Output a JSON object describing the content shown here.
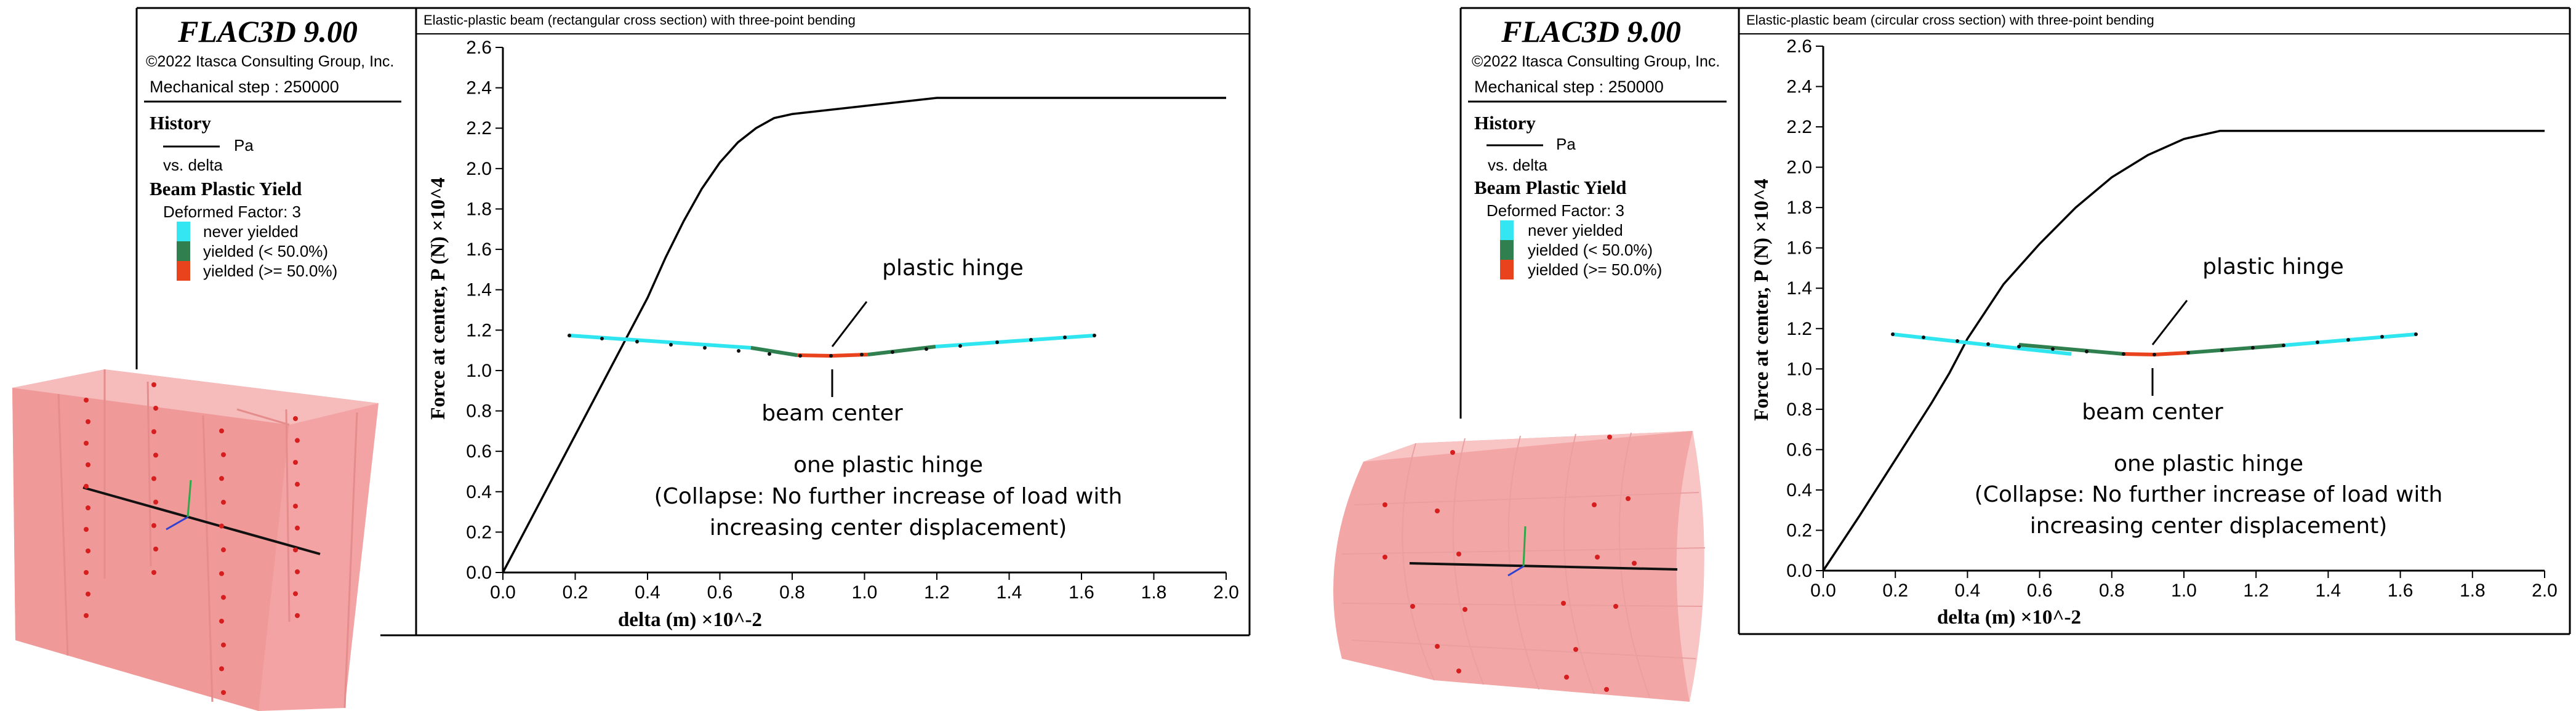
{
  "panels": [
    {
      "id": "rect",
      "legend": {
        "app_title": "FLAC3D 9.00",
        "copyright": "©2022 Itasca Consulting Group, Inc.",
        "step": "Mechanical step : 250000",
        "history_heading": "History",
        "history_series": "Pa",
        "history_vs": "vs. delta",
        "yield_heading": "Beam Plastic Yield",
        "deformed": "Deformed Factor: 3",
        "yield_items": [
          {
            "label": "never yielded",
            "color": "#33e6f2"
          },
          {
            "label": "yielded (< 50.0%)",
            "color": "#2f7f4f"
          },
          {
            "label": "yielded (>= 50.0%)",
            "color": "#e8431c"
          }
        ]
      },
      "annotations": {
        "hinge": "plastic hinge",
        "center": "beam center",
        "note_line1": "one plastic hinge",
        "note_line2": "(Collapse: No further increase of load with",
        "note_line3": "increasing center displacement)"
      }
    },
    {
      "id": "circ",
      "legend": {
        "app_title": "FLAC3D 9.00",
        "copyright": "©2022 Itasca Consulting Group, Inc.",
        "step": "Mechanical step : 250000",
        "history_heading": "History",
        "history_series": "Pa",
        "history_vs": "vs. delta",
        "yield_heading": "Beam Plastic Yield",
        "deformed": "Deformed Factor: 3",
        "yield_items": [
          {
            "label": "never yielded",
            "color": "#33e6f2"
          },
          {
            "label": "yielded (< 50.0%)",
            "color": "#2f7f4f"
          },
          {
            "label": "yielded (>= 50.0%)",
            "color": "#e8431c"
          }
        ]
      },
      "annotations": {
        "hinge": "plastic hinge",
        "center": "beam center",
        "note_line1": "one plastic hinge",
        "note_line2": "(Collapse: No further increase of load with",
        "note_line3": "increasing center displacement)"
      }
    }
  ],
  "chart_data": [
    {
      "type": "line",
      "title": "Elastic-plastic beam (rectangular cross section) with three-point bending",
      "xlabel": "delta (m) ×10^-2",
      "ylabel": "Force at center, P (N) ×10^4",
      "xlim": [
        0,
        2.0
      ],
      "ylim": [
        0,
        2.6
      ],
      "xticks": [
        "0.0",
        "0.2",
        "0.4",
        "0.6",
        "0.8",
        "1.0",
        "1.2",
        "1.4",
        "1.6",
        "1.8",
        "2.0"
      ],
      "yticks": [
        "0.0",
        "0.2",
        "0.4",
        "0.6",
        "0.8",
        "1.0",
        "1.2",
        "1.4",
        "1.6",
        "1.8",
        "2.0",
        "2.2",
        "2.4",
        "2.6"
      ],
      "grid": false,
      "series": [
        {
          "x": [
            0.0,
            0.1,
            0.2,
            0.3,
            0.4,
            0.45,
            0.5,
            0.55,
            0.6,
            0.65,
            0.7,
            0.75,
            0.8,
            1.0,
            1.2,
            1.4,
            1.6,
            1.8,
            2.0
          ],
          "y": [
            0.0,
            0.34,
            0.68,
            1.02,
            1.36,
            1.56,
            1.74,
            1.9,
            2.03,
            2.13,
            2.2,
            2.25,
            2.27,
            2.31,
            2.35,
            2.35,
            2.35,
            2.35,
            2.35
          ]
        }
      ]
    },
    {
      "type": "line",
      "title": "Elastic-plastic beam (circular cross section) with three-point bending",
      "xlabel": "delta (m) ×10^-2",
      "ylabel": "Force at center, P (N) ×10^4",
      "xlim": [
        0,
        2.0
      ],
      "ylim": [
        0,
        2.6
      ],
      "xticks": [
        "0.0",
        "0.2",
        "0.4",
        "0.6",
        "0.8",
        "1.0",
        "1.2",
        "1.4",
        "1.6",
        "1.8",
        "2.0"
      ],
      "yticks": [
        "0.0",
        "0.2",
        "0.4",
        "0.6",
        "0.8",
        "1.0",
        "1.2",
        "1.4",
        "1.6",
        "1.8",
        "2.0",
        "2.2",
        "2.4",
        "2.6"
      ],
      "grid": false,
      "series": [
        {
          "x": [
            0.0,
            0.1,
            0.2,
            0.3,
            0.35,
            0.4,
            0.5,
            0.6,
            0.7,
            0.8,
            0.9,
            1.0,
            1.1,
            1.2,
            1.4,
            1.6,
            1.8,
            2.0
          ],
          "y": [
            0.0,
            0.27,
            0.55,
            0.83,
            0.98,
            1.15,
            1.42,
            1.62,
            1.8,
            1.95,
            2.06,
            2.14,
            2.18,
            2.18,
            2.18,
            2.18,
            2.18,
            2.18
          ]
        }
      ]
    }
  ]
}
